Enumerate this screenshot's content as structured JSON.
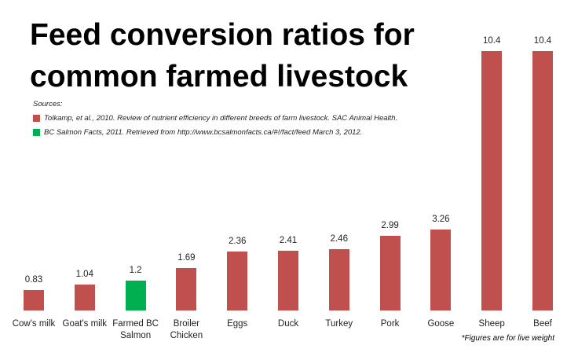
{
  "chart_data": {
    "type": "bar",
    "title": "Feed conversion ratios for common farmed livestock",
    "categories": [
      "Cow's milk",
      "Goat's milk",
      "Farmed BC Salmon",
      "Broiler Chicken",
      "Eggs",
      "Duck",
      "Turkey",
      "Pork",
      "Goose",
      "Sheep",
      "Beef"
    ],
    "values": [
      0.83,
      1.04,
      1.2,
      1.69,
      2.36,
      2.41,
      2.46,
      2.99,
      3.26,
      10.4,
      10.4
    ],
    "colors": [
      "#c0504d",
      "#c0504d",
      "#00b050",
      "#c0504d",
      "#c0504d",
      "#c0504d",
      "#c0504d",
      "#c0504d",
      "#c0504d",
      "#c0504d",
      "#c0504d"
    ],
    "sources_heading": "Sources:",
    "sources": [
      {
        "text": "Tolkamp, et al., 2010. Review of nutrient efficiency in different breeds of farm livestock. SAC Animal Health.",
        "color": "#c0504d"
      },
      {
        "text": "BC Salmon Facts, 2011. Retrieved from http://www.bcsalmonfacts.ca/#!/fact/feed March 3, 2012.",
        "color": "#00b050"
      }
    ],
    "footnote": "*Figures are for live weight"
  }
}
